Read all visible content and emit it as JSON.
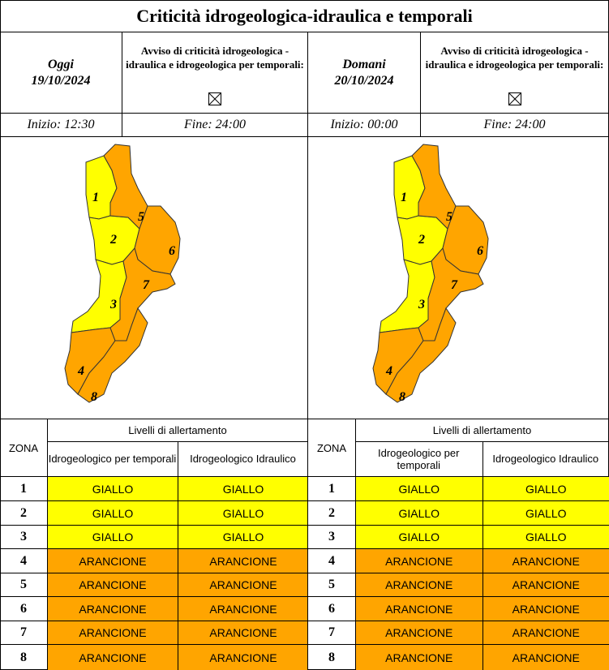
{
  "title": "Criticità idrogeologica-idraulica e temporali",
  "colors": {
    "giallo": "#ffff00",
    "arancione": "#ffa500",
    "border": "#000000"
  },
  "days": [
    {
      "label": "Oggi",
      "date": "19/10/2024",
      "avviso": "Avviso di criticità idrogeologica - idraulica e idrogeologica per temporali:",
      "checkbox_icon": "crossed-box-icon",
      "inizio": "Inizio: 12:30",
      "fine": "Fine: 24:00",
      "zone_colors": [
        "giallo",
        "giallo",
        "giallo",
        "arancione",
        "arancione",
        "arancione",
        "arancione",
        "arancione"
      ],
      "table": {
        "zona_header": "ZONA",
        "levels_header": "Livelli di allertamento",
        "col1_header": "Idrogeologico per temporali",
        "col2_header": "Idrogeologico Idraulico",
        "rows": [
          {
            "zona": "1",
            "col1": "GIALLO",
            "col2": "GIALLO"
          },
          {
            "zona": "2",
            "col1": "GIALLO",
            "col2": "GIALLO"
          },
          {
            "zona": "3",
            "col1": "GIALLO",
            "col2": "GIALLO"
          },
          {
            "zona": "4",
            "col1": "ARANCIONE",
            "col2": "ARANCIONE"
          },
          {
            "zona": "5",
            "col1": "ARANCIONE",
            "col2": "ARANCIONE"
          },
          {
            "zona": "6",
            "col1": "ARANCIONE",
            "col2": "ARANCIONE"
          },
          {
            "zona": "7",
            "col1": "ARANCIONE",
            "col2": "ARANCIONE"
          },
          {
            "zona": "8",
            "col1": "ARANCIONE",
            "col2": "ARANCIONE"
          }
        ]
      }
    },
    {
      "label": "Domani",
      "date": "20/10/2024",
      "avviso": "Avviso di criticità idrogeologica - idraulica e idrogeologica per temporali:",
      "checkbox_icon": "crossed-box-icon",
      "inizio": "Inizio: 00:00",
      "fine": "Fine: 24:00",
      "zone_colors": [
        "giallo",
        "giallo",
        "giallo",
        "arancione",
        "arancione",
        "arancione",
        "arancione",
        "arancione"
      ],
      "table": {
        "zona_header": "ZONA",
        "levels_header": "Livelli di allertamento",
        "col1_header": "Idrogeologico per temporali",
        "col2_header": "Idrogeologico Idraulico",
        "rows": [
          {
            "zona": "1",
            "col1": "GIALLO",
            "col2": "GIALLO"
          },
          {
            "zona": "2",
            "col1": "GIALLO",
            "col2": "GIALLO"
          },
          {
            "zona": "3",
            "col1": "GIALLO",
            "col2": "GIALLO"
          },
          {
            "zona": "4",
            "col1": "ARANCIONE",
            "col2": "ARANCIONE"
          },
          {
            "zona": "5",
            "col1": "ARANCIONE",
            "col2": "ARANCIONE"
          },
          {
            "zona": "6",
            "col1": "ARANCIONE",
            "col2": "ARANCIONE"
          },
          {
            "zona": "7",
            "col1": "ARANCIONE",
            "col2": "ARANCIONE"
          },
          {
            "zona": "8",
            "col1": "ARANCIONE",
            "col2": "ARANCIONE"
          }
        ]
      }
    }
  ]
}
